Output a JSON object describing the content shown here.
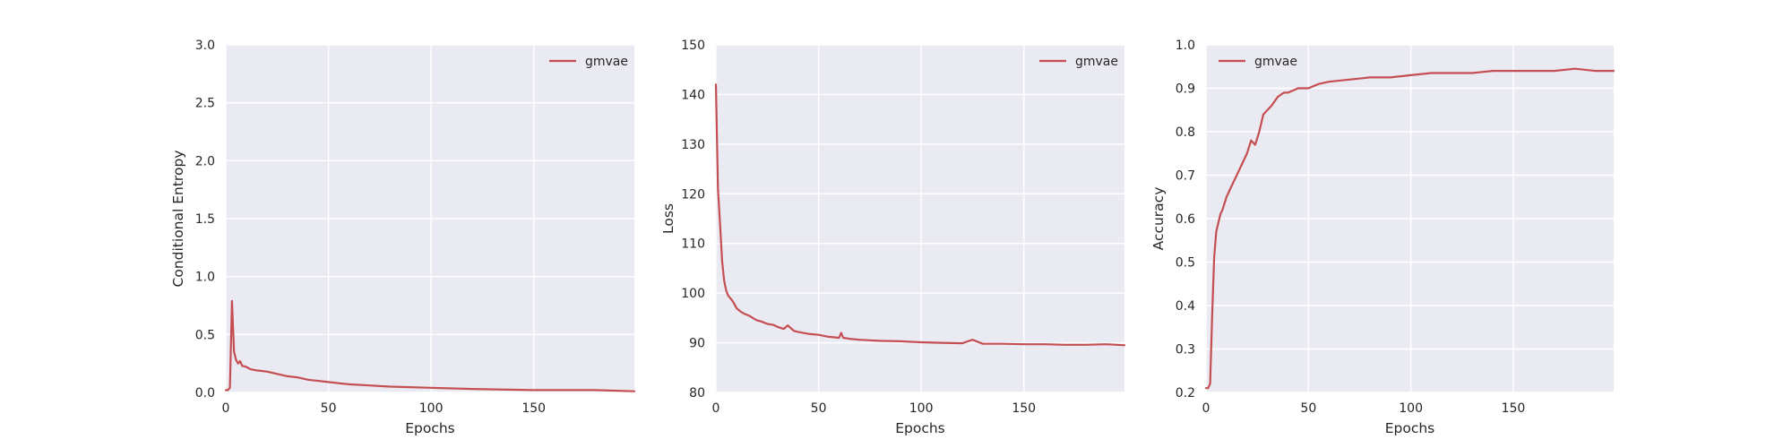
{
  "chart_data": [
    {
      "type": "line",
      "xlabel": "Epochs",
      "ylabel": "Conditional Entropy",
      "xlim": [
        0,
        199
      ],
      "ylim": [
        0,
        3.0
      ],
      "xticks": [
        "0",
        "50",
        "100",
        "150"
      ],
      "yticks": [
        "0.0",
        "0.5",
        "1.0",
        "1.5",
        "2.0",
        "2.5",
        "3.0"
      ],
      "grid": true,
      "legend_position": "top-right",
      "series": [
        {
          "name": "gmvae",
          "color": "#c44e52",
          "x": [
            0,
            1,
            2,
            3,
            4,
            5,
            6,
            7,
            8,
            10,
            12,
            15,
            20,
            25,
            30,
            35,
            40,
            50,
            60,
            70,
            80,
            100,
            120,
            150,
            180,
            199
          ],
          "y": [
            0.02,
            0.02,
            0.04,
            0.79,
            0.35,
            0.28,
            0.25,
            0.27,
            0.23,
            0.22,
            0.2,
            0.19,
            0.18,
            0.16,
            0.14,
            0.13,
            0.11,
            0.09,
            0.07,
            0.06,
            0.05,
            0.04,
            0.03,
            0.02,
            0.02,
            0.01
          ]
        }
      ]
    },
    {
      "type": "line",
      "xlabel": "Epochs",
      "ylabel": "Loss",
      "xlim": [
        0,
        199
      ],
      "ylim": [
        80,
        150
      ],
      "xticks": [
        "0",
        "50",
        "100",
        "150"
      ],
      "yticks": [
        "80",
        "90",
        "100",
        "110",
        "120",
        "130",
        "140",
        "150"
      ],
      "grid": true,
      "legend_position": "top-right",
      "series": [
        {
          "name": "gmvae",
          "color": "#c44e52",
          "x": [
            0,
            1,
            2,
            3,
            4,
            5,
            6,
            7,
            8,
            9,
            10,
            12,
            14,
            16,
            18,
            20,
            22,
            25,
            28,
            30,
            33,
            35,
            38,
            40,
            45,
            50,
            55,
            60,
            61,
            62,
            65,
            70,
            75,
            80,
            90,
            100,
            110,
            120,
            125,
            130,
            140,
            150,
            160,
            170,
            180,
            190,
            199
          ],
          "y": [
            142,
            121,
            114,
            106.5,
            102.5,
            100.5,
            99.5,
            99.0,
            98.5,
            97.8,
            97.0,
            96.3,
            95.8,
            95.5,
            95.0,
            94.5,
            94.3,
            93.8,
            93.6,
            93.2,
            92.8,
            93.5,
            92.4,
            92.2,
            91.8,
            91.6,
            91.2,
            91.0,
            92.0,
            91.0,
            90.8,
            90.6,
            90.5,
            90.4,
            90.3,
            90.1,
            90.0,
            89.9,
            90.6,
            89.8,
            89.8,
            89.7,
            89.7,
            89.6,
            89.6,
            89.7,
            89.5
          ]
        }
      ]
    },
    {
      "type": "line",
      "xlabel": "Epochs",
      "ylabel": "Accuracy",
      "xlim": [
        0,
        199
      ],
      "ylim": [
        0.2,
        1.0
      ],
      "xticks": [
        "0",
        "50",
        "100",
        "150"
      ],
      "yticks": [
        "0.2",
        "0.3",
        "0.4",
        "0.5",
        "0.6",
        "0.7",
        "0.8",
        "0.9",
        "1.0"
      ],
      "grid": true,
      "legend_position": "top-left",
      "series": [
        {
          "name": "gmvae",
          "color": "#c44e52",
          "x": [
            0,
            1,
            2,
            3,
            4,
            5,
            6,
            7,
            8,
            10,
            12,
            14,
            16,
            18,
            20,
            22,
            24,
            26,
            28,
            30,
            32,
            35,
            38,
            40,
            45,
            50,
            55,
            60,
            70,
            80,
            90,
            100,
            110,
            120,
            130,
            140,
            150,
            160,
            170,
            180,
            190,
            199
          ],
          "y": [
            0.21,
            0.21,
            0.22,
            0.38,
            0.51,
            0.57,
            0.59,
            0.61,
            0.62,
            0.65,
            0.67,
            0.69,
            0.71,
            0.73,
            0.75,
            0.78,
            0.77,
            0.8,
            0.84,
            0.85,
            0.86,
            0.88,
            0.89,
            0.89,
            0.9,
            0.9,
            0.91,
            0.915,
            0.92,
            0.925,
            0.925,
            0.93,
            0.935,
            0.935,
            0.935,
            0.94,
            0.94,
            0.94,
            0.94,
            0.945,
            0.94,
            0.94
          ]
        }
      ]
    }
  ]
}
